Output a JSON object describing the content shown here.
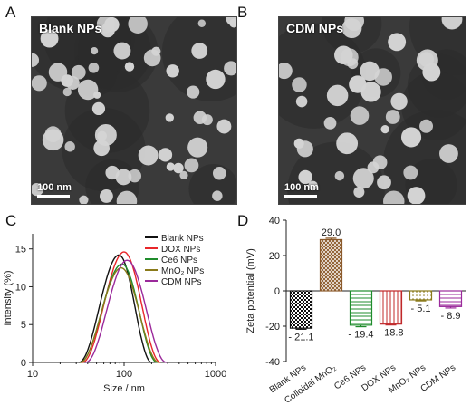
{
  "panels": {
    "a": {
      "letter": "A",
      "label": "Blank NPs",
      "scale": "100 nm"
    },
    "b": {
      "letter": "B",
      "label": "CDM NPs",
      "scale": "100 nm"
    },
    "c": {
      "letter": "C"
    },
    "d": {
      "letter": "D"
    }
  },
  "chart_data": [
    {
      "type": "line",
      "xlabel": "Size / nm",
      "ylabel": "Intensity (%)",
      "xscale": "log",
      "xlim": [
        10,
        1000
      ],
      "ylim": [
        0,
        17
      ],
      "xticks": [
        10,
        100,
        1000
      ],
      "yticks": [
        0,
        5,
        10,
        15
      ],
      "legend_position": "top-right",
      "series": [
        {
          "name": "Blank NPs",
          "color": "#111111",
          "peak_x": 88,
          "peak_y": 14.2,
          "lo": 32,
          "hi": 200
        },
        {
          "name": "DOX NPs",
          "color": "#e8262a",
          "peak_x": 100,
          "peak_y": 14.6,
          "lo": 35,
          "hi": 250
        },
        {
          "name": "Ce6 NPs",
          "color": "#1f8c2c",
          "peak_x": 95,
          "peak_y": 13.0,
          "lo": 33,
          "hi": 230
        },
        {
          "name": "MnO₂ NPs",
          "color": "#8a7a1a",
          "peak_x": 93,
          "peak_y": 12.5,
          "lo": 33,
          "hi": 240
        },
        {
          "name": "CDM NPs",
          "color": "#9b2a9b",
          "peak_x": 108,
          "peak_y": 13.5,
          "lo": 38,
          "hi": 290
        }
      ]
    },
    {
      "type": "bar",
      "ylabel": "Zeta potential (mV)",
      "ylim": [
        -40,
        40
      ],
      "yticks": [
        -40,
        -20,
        0,
        20,
        40
      ],
      "categories": [
        "Blank NPs",
        "Colloidal MnO₂",
        "Ce6 NPs",
        "DOX NPs",
        "MnO₂ NPs",
        "CDM NPs"
      ],
      "values": [
        -21.1,
        29.0,
        -19.4,
        -18.8,
        -5.1,
        -8.9
      ],
      "errors": [
        0.6,
        0.8,
        0.9,
        0.5,
        0.6,
        0.8
      ],
      "value_labels": [
        "- 21.1",
        "29.0",
        "- 19.4",
        "- 18.8",
        "- 5.1",
        "- 8.9"
      ],
      "colors": [
        "#111111",
        "#8b5a2b",
        "#1f8c2c",
        "#c0282a",
        "#8a7a1a",
        "#9b2a9b"
      ],
      "patterns": [
        "checker",
        "diamond",
        "hlines",
        "vlines",
        "dots",
        "hlines"
      ]
    }
  ]
}
